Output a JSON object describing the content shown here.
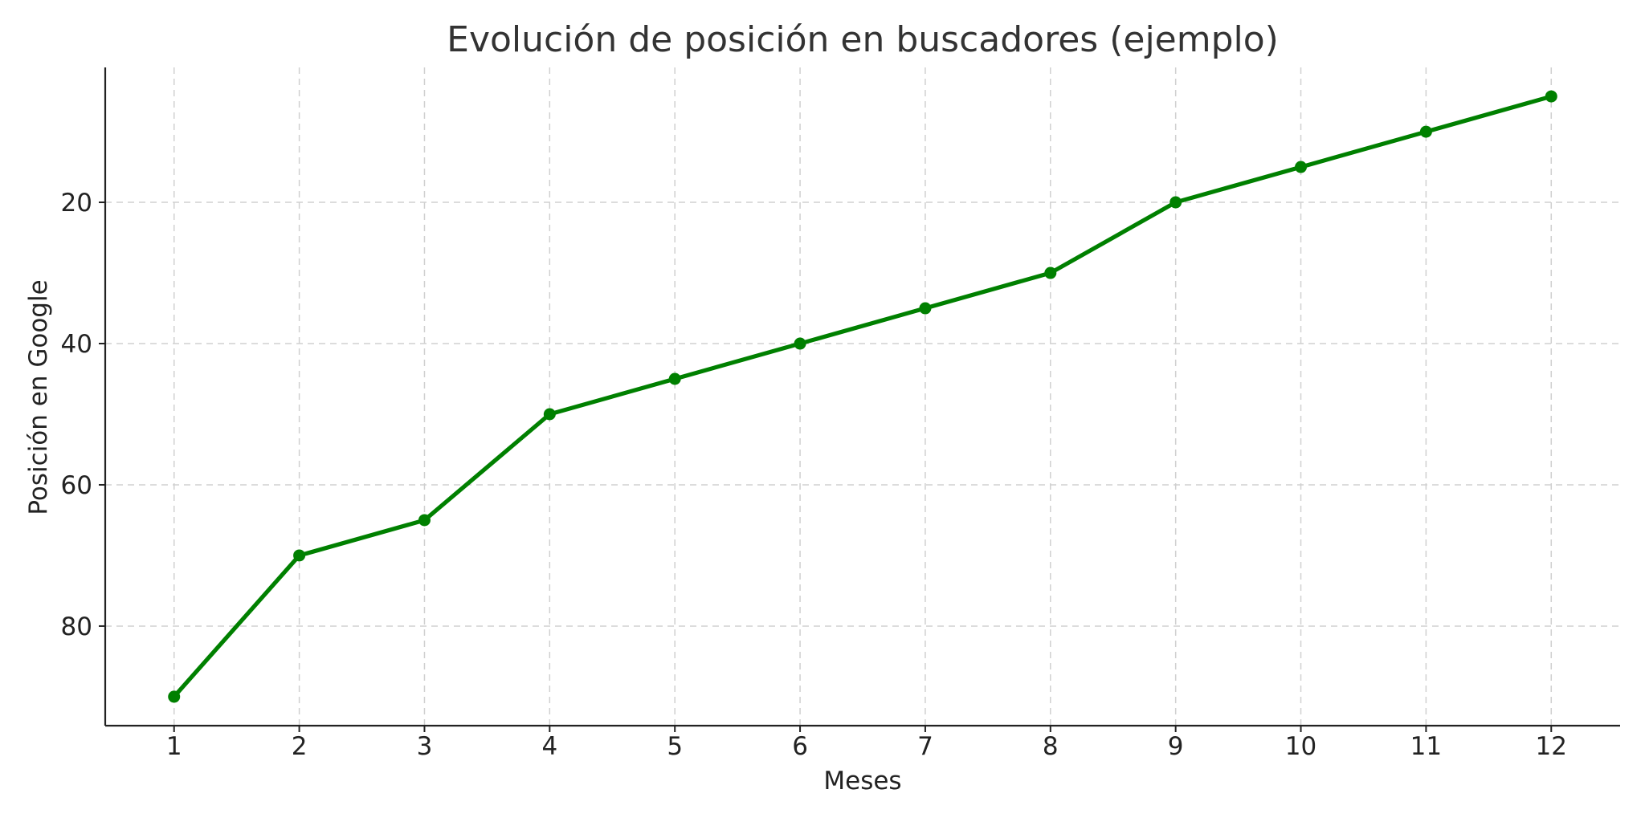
{
  "chart_data": {
    "type": "line",
    "title": "Evolución de posición en buscadores (ejemplo)",
    "xlabel": "Meses",
    "ylabel": "Posición en Google",
    "x": [
      1,
      2,
      3,
      4,
      5,
      6,
      7,
      8,
      9,
      10,
      11,
      12
    ],
    "series": [
      {
        "values": [
          90,
          70,
          65,
          50,
          45,
          40,
          35,
          30,
          20,
          15,
          10,
          5
        ],
        "color": "#008000",
        "marker": "circle"
      }
    ],
    "xticks": [
      "1",
      "2",
      "3",
      "4",
      "5",
      "6",
      "7",
      "8",
      "9",
      "10",
      "11",
      "12"
    ],
    "yticks": [
      20,
      40,
      60,
      80
    ],
    "xlim": [
      0.45,
      12.55
    ],
    "ylim": [
      94.1,
      0.9
    ],
    "y_inverted": true,
    "grid": true
  }
}
